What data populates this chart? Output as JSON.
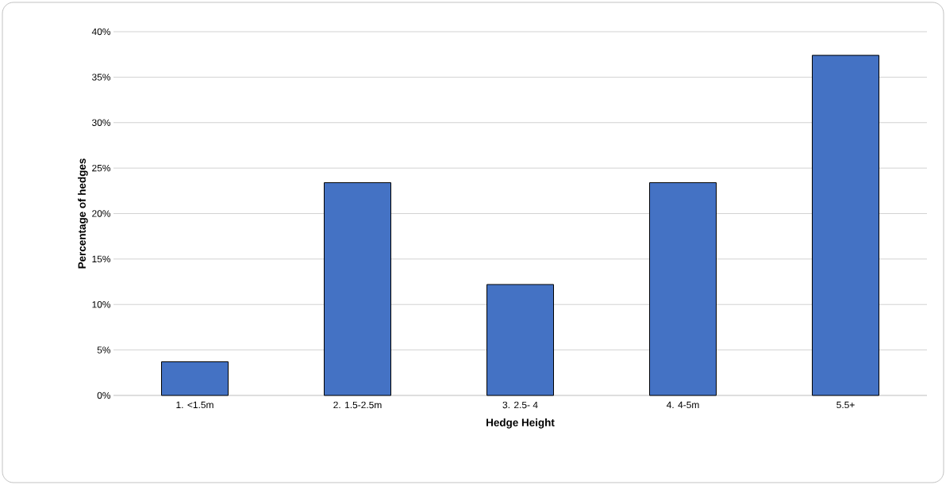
{
  "chart_data": {
    "type": "bar",
    "xlabel": "Hedge Height",
    "ylabel": "Percentage of hedges",
    "categories": [
      "1. <1.5m",
      "2. 1.5-2.5m",
      "3. 2.5- 4",
      "4. 4-5m",
      "5.5+"
    ],
    "values": [
      3.7,
      23.4,
      12.2,
      23.4,
      37.4
    ],
    "color": "#4472c4",
    "ylim": [
      0,
      40
    ],
    "yticks": [
      {
        "value": 0,
        "label": "0%"
      },
      {
        "value": 5,
        "label": "5%"
      },
      {
        "value": 10,
        "label": "10%"
      },
      {
        "value": 15,
        "label": "15%"
      },
      {
        "value": 20,
        "label": "20%"
      },
      {
        "value": 25,
        "label": "25%"
      },
      {
        "value": 30,
        "label": "30%"
      },
      {
        "value": 35,
        "label": "35%"
      },
      {
        "value": 40,
        "label": "40%"
      }
    ],
    "grid": "y"
  }
}
